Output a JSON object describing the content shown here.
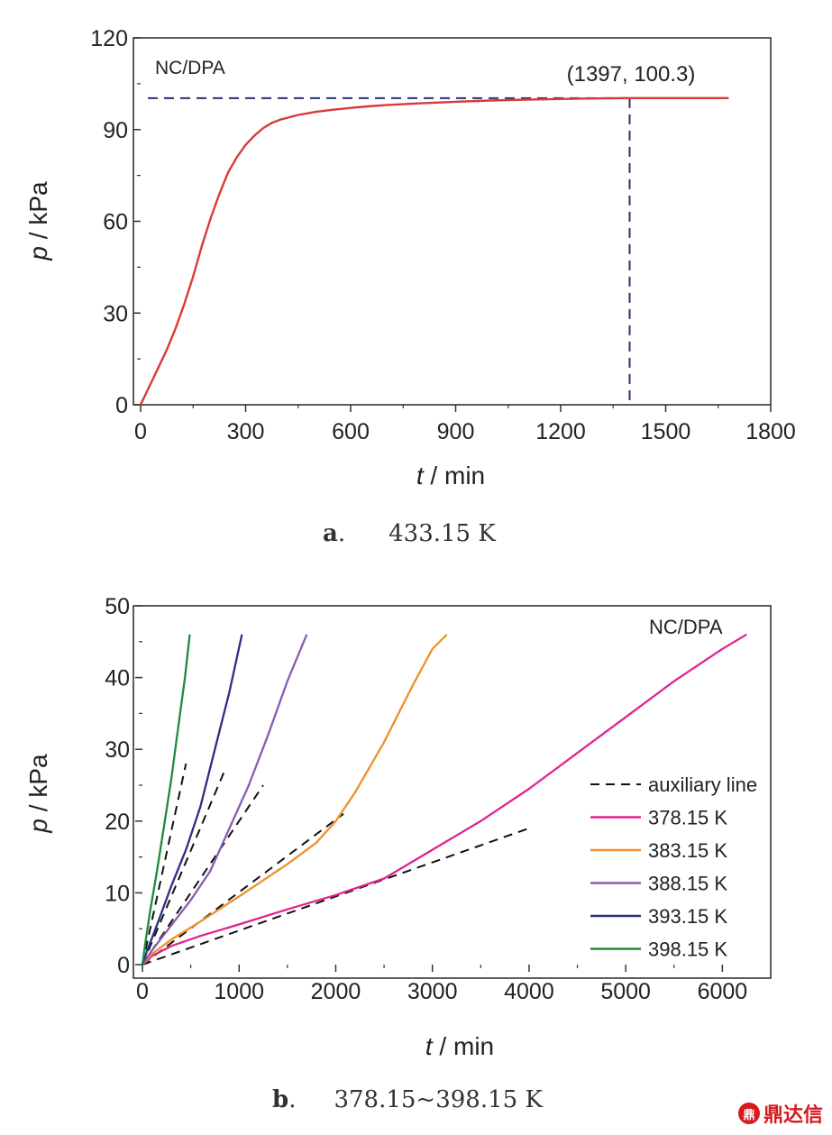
{
  "chart_data": [
    {
      "type": "line",
      "panel_label": "a",
      "caption": "433.15 K",
      "xlabel_var": "t",
      "xlabel_unit": " / min",
      "ylabel_var": "p",
      "ylabel_unit": " / kPa",
      "xlim": [
        0,
        1800
      ],
      "ylim": [
        0,
        120
      ],
      "xticks": [
        0,
        300,
        600,
        900,
        1200,
        1500,
        1800
      ],
      "yticks": [
        0,
        30,
        60,
        90,
        120
      ],
      "series_label": "NC/DPA",
      "colors": {
        "curve": "#d83a3a",
        "guide": "#2a2f7a",
        "label": "#d83a3a"
      },
      "series": [
        {
          "x": [
            0,
            25,
            50,
            75,
            100,
            125,
            150,
            175,
            200,
            225,
            250,
            275,
            300,
            325,
            350,
            375,
            400,
            450,
            500,
            550,
            600,
            650,
            700,
            800,
            900,
            1000,
            1100,
            1200,
            1300,
            1397,
            1500,
            1600,
            1680
          ],
          "y": [
            0,
            6,
            12,
            18,
            25,
            33,
            42,
            52,
            61,
            69,
            76,
            81,
            85,
            88,
            90.5,
            92.2,
            93.3,
            94.8,
            95.8,
            96.5,
            97.1,
            97.6,
            98,
            98.6,
            99.1,
            99.5,
            99.8,
            100,
            100.2,
            100.3,
            100.3,
            100.3,
            100.3
          ]
        }
      ],
      "annotation": {
        "text": "(1397, 100.3)",
        "x": 1397,
        "y": 100.3
      }
    },
    {
      "type": "line",
      "panel_label": "b",
      "caption": "378.15~398.15 K",
      "xlabel_var": "t",
      "xlabel_unit": " / min",
      "ylabel_var": "p",
      "ylabel_unit": " / kPa",
      "xlim": [
        0,
        6500
      ],
      "ylim": [
        0,
        50
      ],
      "xticks": [
        0,
        1000,
        2000,
        3000,
        4000,
        5000,
        6000
      ],
      "yticks": [
        0,
        10,
        20,
        30,
        40,
        50
      ],
      "series_label": "NC/DPA",
      "label_color": "#e0245e",
      "legend": {
        "placement": "right",
        "entries": [
          {
            "name": "auxiliary line",
            "color": "#111111",
            "dashed": true
          },
          {
            "name": "378.15 K",
            "color": "#e0248f",
            "dashed": false
          },
          {
            "name": "383.15 K",
            "color": "#f0902a",
            "dashed": false
          },
          {
            "name": "388.15 K",
            "color": "#8a5bb0",
            "dashed": false
          },
          {
            "name": "393.15 K",
            "color": "#2c2f84",
            "dashed": false
          },
          {
            "name": "398.15 K",
            "color": "#1e8a3c",
            "dashed": false
          }
        ]
      },
      "series": [
        {
          "name": "378.15 K",
          "color": "#e0248f",
          "x": [
            0,
            100,
            300,
            600,
            1000,
            1500,
            2000,
            2500,
            3000,
            3500,
            4000,
            4500,
            5000,
            5500,
            6000,
            6250
          ],
          "y": [
            0,
            1.2,
            2.6,
            4,
            5.6,
            7.7,
            9.7,
            12,
            16,
            20,
            24.5,
            29.5,
            34.5,
            39.5,
            44,
            46
          ]
        },
        {
          "name": "383.15 K",
          "color": "#f0902a",
          "x": [
            0,
            100,
            300,
            600,
            1000,
            1500,
            1800,
            2000,
            2200,
            2500,
            2800,
            3000,
            3150
          ],
          "y": [
            0,
            1.5,
            3.5,
            6,
            9.5,
            14,
            17,
            20,
            24,
            31,
            39,
            44,
            46
          ]
        },
        {
          "name": "388.15 K",
          "color": "#8a5bb0",
          "x": [
            0,
            100,
            300,
            500,
            700,
            900,
            1100,
            1300,
            1500,
            1700
          ],
          "y": [
            0,
            2,
            5.5,
            9,
            13,
            19,
            25,
            32,
            39.5,
            46
          ]
        },
        {
          "name": "393.15 K",
          "color": "#2c2f84",
          "x": [
            0,
            50,
            150,
            300,
            450,
            600,
            750,
            900,
            1030
          ],
          "y": [
            0,
            2,
            5.5,
            11,
            16,
            22,
            30,
            38,
            46
          ]
        },
        {
          "name": "398.15 K",
          "color": "#1e8a3c",
          "x": [
            0,
            30,
            80,
            150,
            220,
            300,
            380,
            440,
            490
          ],
          "y": [
            0,
            3,
            7.5,
            13,
            19,
            26,
            34,
            40,
            46
          ]
        }
      ],
      "auxiliary_lines": [
        {
          "x": [
            0,
            4000
          ],
          "y": [
            0,
            19
          ]
        },
        {
          "x": [
            0,
            2080
          ],
          "y": [
            0,
            21
          ]
        },
        {
          "x": [
            0,
            1250
          ],
          "y": [
            0,
            25
          ]
        },
        {
          "x": [
            0,
            850
          ],
          "y": [
            0,
            27
          ]
        },
        {
          "x": [
            0,
            450
          ],
          "y": [
            0,
            28
          ]
        }
      ]
    }
  ],
  "watermark": {
    "logo": "鼎",
    "text": "鼎达信"
  }
}
